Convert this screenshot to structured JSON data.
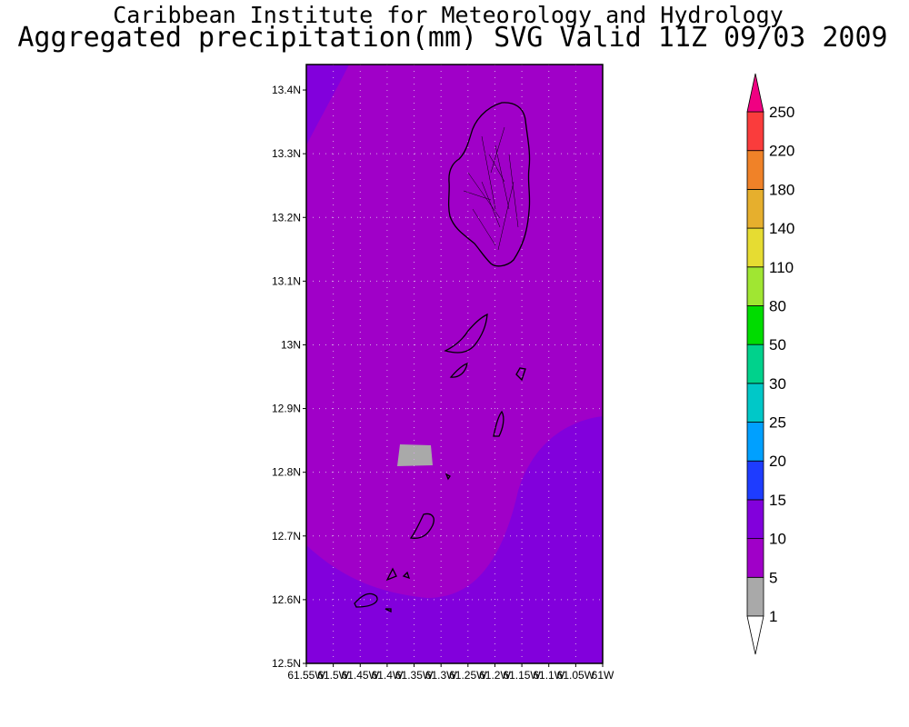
{
  "title": {
    "line1": "Caribbean Institute for Meteorology and Hydrology",
    "line2": "Aggregated precipitation(mm) SVG Valid 11Z 09/03 2009"
  },
  "map": {
    "lat_range": [
      12.5,
      13.44
    ],
    "lon_range": [
      -61.55,
      -61.0
    ],
    "lat_ticks": [
      "13.4N",
      "13.3N",
      "13.2N",
      "13.1N",
      "13N",
      "12.9N",
      "12.8N",
      "12.7N",
      "12.6N",
      "12.5N"
    ],
    "lon_ticks": [
      "61.55W",
      "61.5W",
      "61.45W",
      "61.4W",
      "61.35W",
      "61.3W",
      "61.25W",
      "61.2W",
      "61.15W",
      "61.1W",
      "61.05W",
      "61W"
    ],
    "grid": true,
    "fill_colors": {
      "range_5_10": "#a000c8",
      "range_10_15": "#8200dc",
      "range_1_5": "#a9a9a9",
      "coast": "#000000"
    }
  },
  "colorbar": {
    "levels": [
      "1",
      "5",
      "10",
      "15",
      "20",
      "25",
      "30",
      "50",
      "80",
      "110",
      "140",
      "180",
      "220",
      "250"
    ],
    "colors": [
      "#a9a9a9",
      "#a000c8",
      "#8200dc",
      "#1e3cff",
      "#00a0ff",
      "#00c8c8",
      "#00d28c",
      "#00dc00",
      "#a0e632",
      "#e6dc32",
      "#e6af2d",
      "#f08228",
      "#fa3c3c",
      "#f00082"
    ]
  }
}
